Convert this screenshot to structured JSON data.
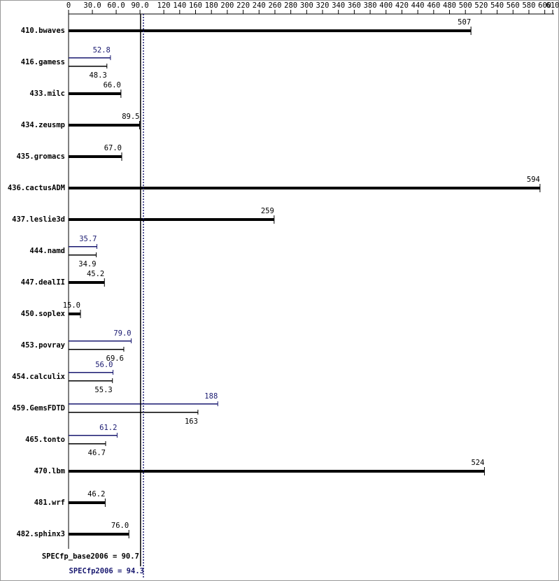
{
  "chart_data": {
    "type": "bar",
    "categories": [
      "410.bwaves",
      "416.gamess",
      "433.milc",
      "434.zeusmp",
      "435.gromacs",
      "436.cactusADM",
      "437.leslie3d",
      "444.namd",
      "447.dealII",
      "450.soplex",
      "453.povray",
      "454.calculix",
      "459.GemsFDTD",
      "465.tonto",
      "470.lbm",
      "481.wrf",
      "482.sphinx3"
    ],
    "series": [
      {
        "color": "#000000",
        "values": [
          507,
          48.3,
          66.0,
          89.5,
          67.0,
          594,
          259,
          34.9,
          45.2,
          15.0,
          69.6,
          55.3,
          163,
          46.7,
          524,
          46.2,
          76.0
        ],
        "value_labels": [
          "507",
          "48.3",
          "66.0",
          "89.5",
          "67.0",
          "594",
          "259",
          "34.9",
          "45.2",
          "15.0",
          "69.6",
          "55.3",
          "163",
          "46.7",
          "524",
          "46.2",
          "76.0"
        ]
      },
      {
        "color": "#191970",
        "values": [
          null,
          52.8,
          null,
          null,
          null,
          null,
          null,
          35.7,
          null,
          null,
          79.0,
          56.0,
          188,
          61.2,
          null,
          null,
          null
        ],
        "value_labels": [
          null,
          "52.8",
          null,
          null,
          null,
          null,
          null,
          "35.7",
          null,
          null,
          "79.0",
          "56.0",
          "188",
          "61.2",
          null,
          null,
          null
        ]
      }
    ],
    "xlim": [
      0,
      610
    ],
    "xticks": [
      0,
      {
        "value": 30,
        "label": "30.0"
      },
      {
        "value": 60,
        "label": "60.0"
      },
      {
        "value": 90,
        "label": "90.0"
      },
      120,
      140,
      160,
      180,
      200,
      220,
      240,
      260,
      280,
      300,
      320,
      340,
      360,
      380,
      400,
      420,
      440,
      460,
      480,
      500,
      520,
      540,
      560,
      580,
      600,
      610
    ],
    "reference_lines": [
      {
        "label": "SPECfp_base2006 = 90.7",
        "value": 90.7,
        "color": "#000000"
      },
      {
        "label": "SPECfp2006 = 94.3",
        "value": 94.3,
        "color": "#191970"
      }
    ]
  }
}
